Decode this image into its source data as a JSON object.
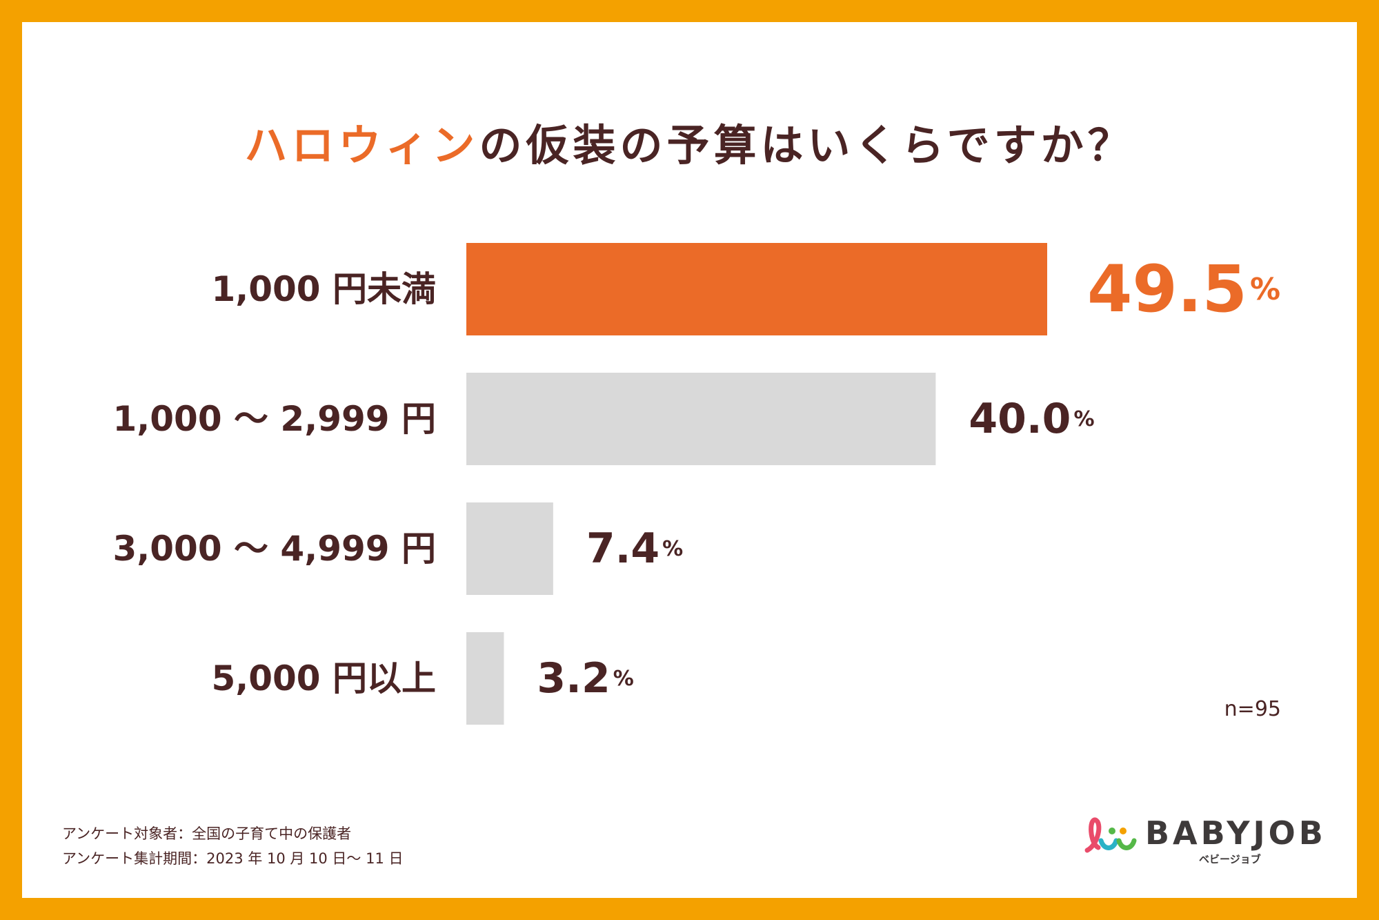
{
  "title": {
    "highlight": "ハロウィン",
    "rest": "の仮装の予算はいくらですか？"
  },
  "chart_data": {
    "type": "bar",
    "orientation": "horizontal",
    "title": "ハロウィンの仮装の予算はいくらですか？",
    "categories": [
      "1,000 円未満",
      "1,000 〜 2,999 円",
      "3,000 〜 4,999 円",
      "5,000 円以上"
    ],
    "values": [
      49.5,
      40.0,
      7.4,
      3.2
    ],
    "value_labels": [
      "49.5",
      "40.0",
      "7.4",
      "3.2"
    ],
    "unit": "%",
    "xlim": [
      0,
      49.5
    ],
    "highlight_index": 0,
    "colors": {
      "highlight": "#EB6B28",
      "default": "#D9D9D9",
      "text": "#4A2424"
    }
  },
  "sample_size": "n=95",
  "footnotes": [
    "アンケート対象者：全国の子育て中の保護者",
    "アンケート集計期間：2023 年 10 月 10 日〜 11 日"
  ],
  "logo": {
    "name": "BABYJOB",
    "sub": "ベビージョブ"
  }
}
